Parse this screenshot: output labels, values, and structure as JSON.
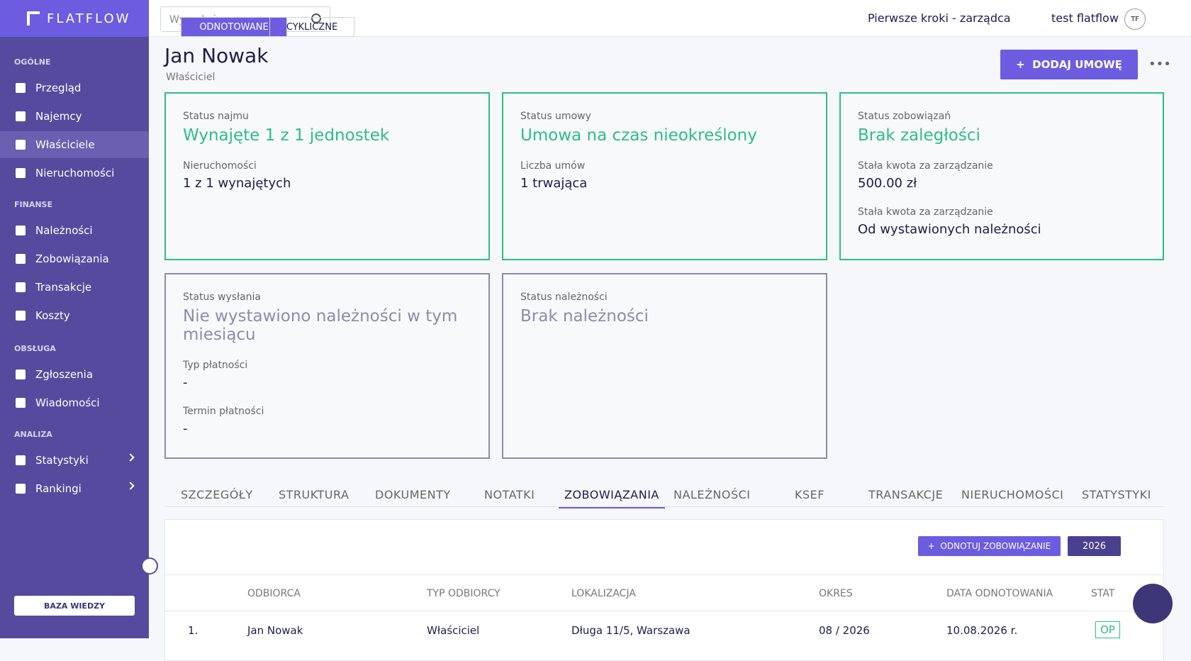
{
  "sidebar": {
    "logo": "FLATFLOW",
    "sections": [
      {
        "title": "OGÓLNE",
        "items": [
          "Przegląd",
          "Najemcy",
          "Właściciele",
          "Nieruchomości"
        ]
      },
      {
        "title": "FINANSE",
        "items": [
          "Należności",
          "Zobowiązania",
          "Transakcje",
          "Koszty"
        ]
      },
      {
        "title": "OBSŁUGA",
        "items": [
          "Zgłoszenia",
          "Wiadomości"
        ]
      },
      {
        "title": "ANALIZA",
        "items": [
          "Statystyki",
          "Rankingi"
        ]
      }
    ],
    "help": "BAZA WIEDZY"
  },
  "topbar": {
    "search_placeholder": "Wyszukaj...",
    "workspace": "Pierwsze kroki - zarządca",
    "user": "test flatflow",
    "avatar": "TF"
  },
  "header": {
    "name": "Jan Nowak",
    "role": "Właściciel",
    "button": "DODAJ UMOWĘ"
  },
  "cards": [
    {
      "label": "Status najmu",
      "status": "Wynajęte 1 z 1 jednostek",
      "fields": [
        {
          "label": "Nieruchomości",
          "value": "1 z 1 wynajętych"
        }
      ]
    },
    {
      "label": "Status umowy",
      "status": "Umowa na czas nieokreślony",
      "fields": [
        {
          "label": "Liczba umów",
          "value": "1 trwająca"
        }
      ]
    },
    {
      "label": "Status zobowiązań",
      "status": "Brak zaległości",
      "fields": [
        {
          "label": "Stała kwota za zarządzanie",
          "value": "500.00 zł"
        },
        {
          "label": "Stała kwota za zarządzanie",
          "value": "Od wystawionych należności"
        }
      ]
    },
    {
      "label": "Status wysłania",
      "status": "Nie wystawiono należności w tym miesiącu",
      "fields": [
        {
          "label": "Typ płatności",
          "value": "-"
        },
        {
          "label": "Termin płatności",
          "value": "-"
        }
      ]
    },
    {
      "label": "Status należności",
      "status": "Brak należności",
      "fields": []
    }
  ],
  "tabs": [
    "SZCZEGÓŁY",
    "STRUKTURA",
    "DOKUMENTY",
    "NOTATKI",
    "ZOBOWIĄZANIA",
    "NALEŻNOŚCI",
    "KSEF",
    "TRANSAKCJE",
    "NIERUCHOMOŚCI",
    "STATYSTYKI"
  ],
  "panel": {
    "toggle": [
      "ODNOTOWANE",
      "CYKLICZNE"
    ],
    "add_button": "ODNOTUJ ZOBOWIĄZANIE",
    "year": "2026",
    "table": {
      "columns": [
        "ODBIORCA",
        "TYP ODBIORCY",
        "LOKALIZACJA",
        "OKRES",
        "DATA ODNOTOWANIA",
        "STAT"
      ],
      "rows": [
        [
          "1.",
          "Jan Nowak",
          "Właściciel",
          "Długa 11/5, Warszawa",
          "08 / 2026",
          "10.08.2026 r.",
          "OP"
        ]
      ]
    }
  }
}
